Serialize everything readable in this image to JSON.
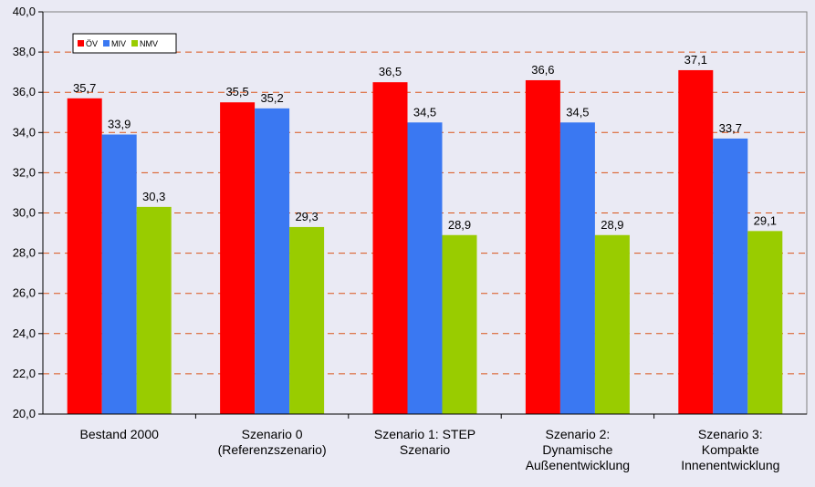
{
  "chart_data": {
    "type": "bar",
    "categories": [
      [
        "Bestand 2000"
      ],
      [
        "Szenario 0",
        "(Referenzszenario)"
      ],
      [
        "Szenario 1: STEP",
        "Szenario"
      ],
      [
        "Szenario 2:",
        "Dynamische",
        "Außenentwicklung"
      ],
      [
        "Szenario 3:",
        "Kompakte",
        "Innenentwicklung"
      ]
    ],
    "series": [
      {
        "name": "ÖV",
        "color": "#ff0000",
        "values": [
          35.7,
          35.5,
          36.5,
          36.6,
          37.1
        ],
        "labels": [
          "35,7",
          "35,5",
          "36,5",
          "36,6",
          "37,1"
        ]
      },
      {
        "name": "MIV",
        "color": "#3a78f2",
        "values": [
          33.9,
          35.2,
          34.5,
          34.5,
          33.7
        ],
        "labels": [
          "33,9",
          "35,2",
          "34,5",
          "34,5",
          "33,7"
        ]
      },
      {
        "name": "NMV",
        "color": "#99cc00",
        "values": [
          30.3,
          29.3,
          28.9,
          28.9,
          29.1
        ],
        "labels": [
          "30,3",
          "29,3",
          "28,9",
          "28,9",
          "29,1"
        ]
      }
    ],
    "ylim": [
      20,
      40
    ],
    "yticks": [
      20,
      22,
      24,
      26,
      28,
      30,
      32,
      34,
      36,
      38,
      40
    ],
    "ytick_labels": [
      "20,0",
      "22,0",
      "24,0",
      "26,0",
      "28,0",
      "30,0",
      "32,0",
      "34,0",
      "36,0",
      "38,0",
      "40,0"
    ],
    "grid": "horizontal dashed",
    "gridColor": "#d9541a",
    "legend_position": "top-left"
  }
}
